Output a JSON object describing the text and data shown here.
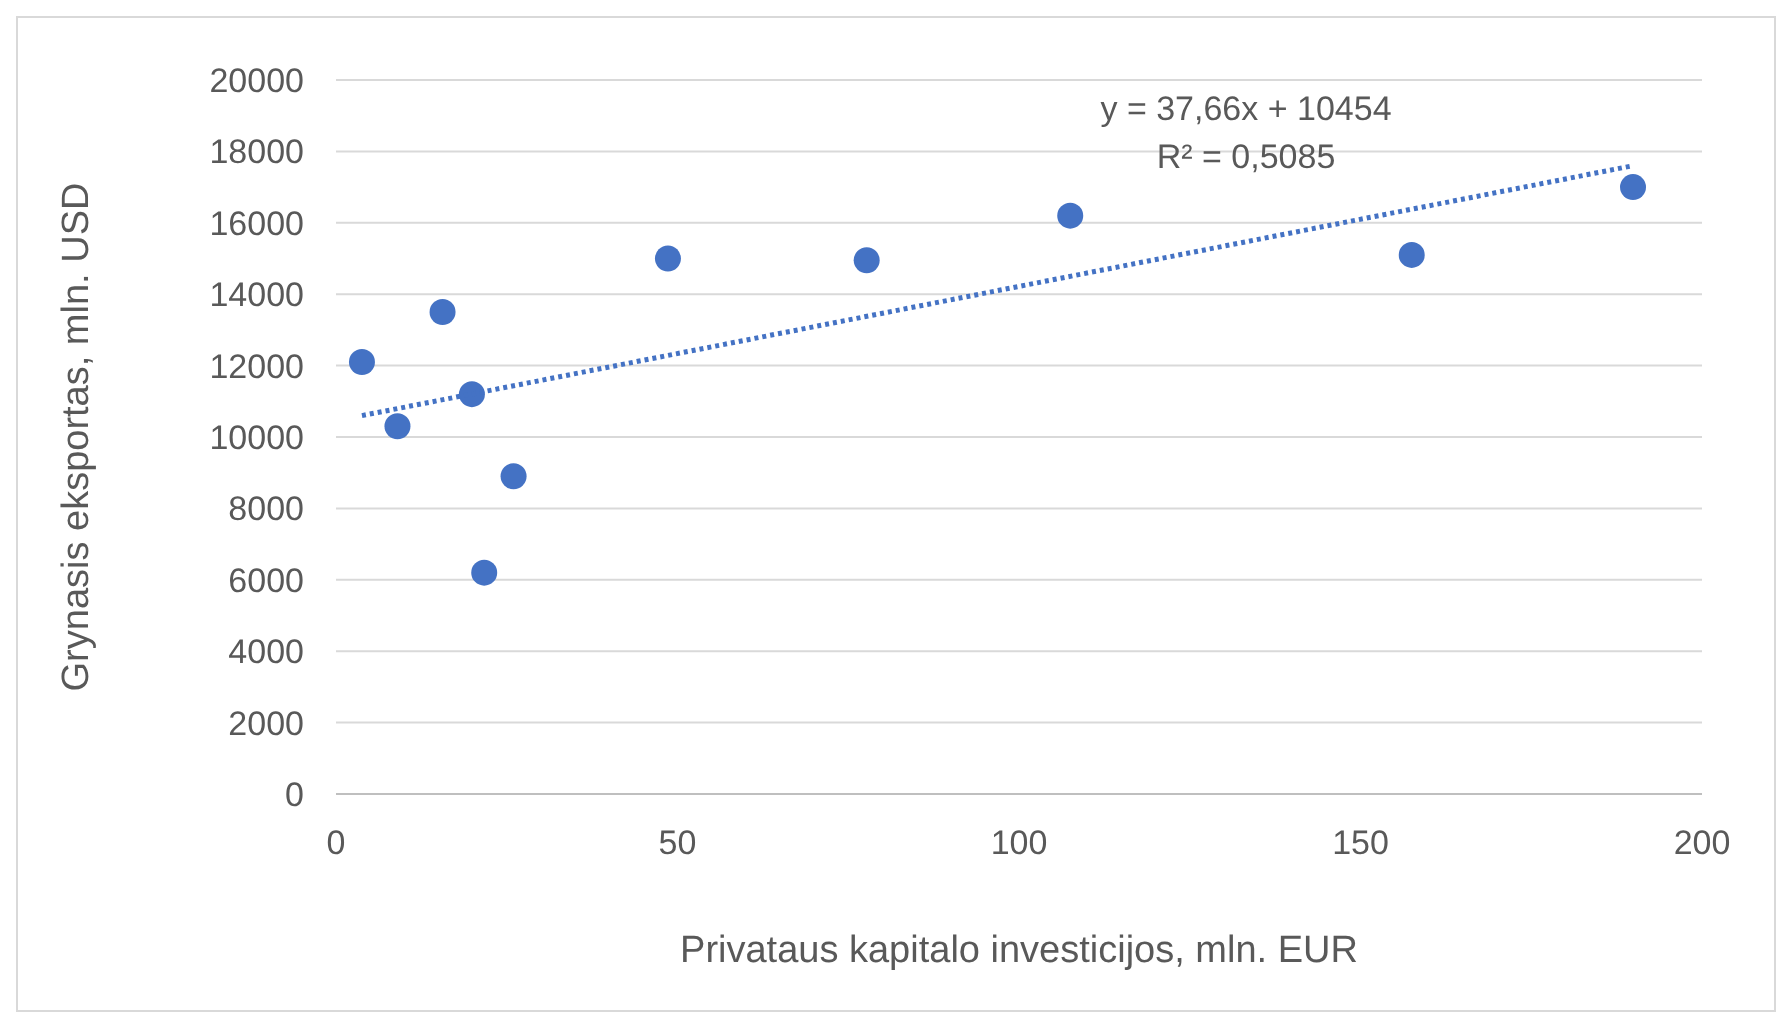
{
  "chart_data": {
    "type": "scatter",
    "xlabel": "Privataus kapitalo investicijos, mln. EUR",
    "ylabel": "Grynasis eksportas, mln. USD",
    "xlim": [
      0,
      200
    ],
    "xticks": [
      0,
      50,
      100,
      150,
      200
    ],
    "ylim": [
      0,
      20000
    ],
    "yticks": [
      0,
      2000,
      4000,
      6000,
      8000,
      10000,
      12000,
      14000,
      16000,
      18000,
      20000
    ],
    "grid": "y",
    "series": [
      {
        "marker": "circle",
        "color": "#4472c4",
        "x": [
          3.8,
          9.0,
          15.6,
          19.9,
          21.7,
          26.0,
          48.6,
          77.7,
          107.5,
          157.5,
          189.9
        ],
        "values": [
          12100,
          10300,
          13500,
          11200,
          6200,
          8900,
          15000,
          14950,
          16200,
          15100,
          17000
        ]
      },
      {
        "type": "line",
        "color": "#4472c4",
        "line_style": "dotted",
        "marker": "none",
        "x": [
          3.8,
          189.9
        ],
        "values": [
          10600,
          17600
        ]
      }
    ],
    "annotations": [
      "y = 37,66x + 10454",
      "R² = 0,5085"
    ]
  }
}
